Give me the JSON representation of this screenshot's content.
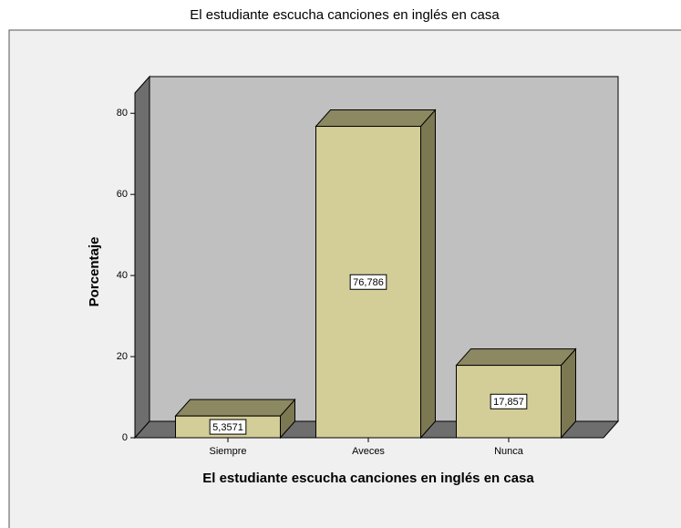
{
  "chart_data": {
    "type": "bar3d",
    "title": "El estudiante escucha canciones en inglés en casa",
    "x_label": "El estudiante escucha canciones en inglés en casa",
    "y_label": "Porcentaje",
    "categories": [
      "Siempre",
      "Aveces",
      "Nunca"
    ],
    "values": [
      5.3571,
      76.786,
      17.857
    ],
    "value_labels": [
      "5,3571",
      "76,786",
      "17,857"
    ],
    "color": "#d3cd98",
    "ylim": [
      0,
      85
    ],
    "yticks": [
      0,
      20,
      40,
      60,
      80
    ]
  }
}
